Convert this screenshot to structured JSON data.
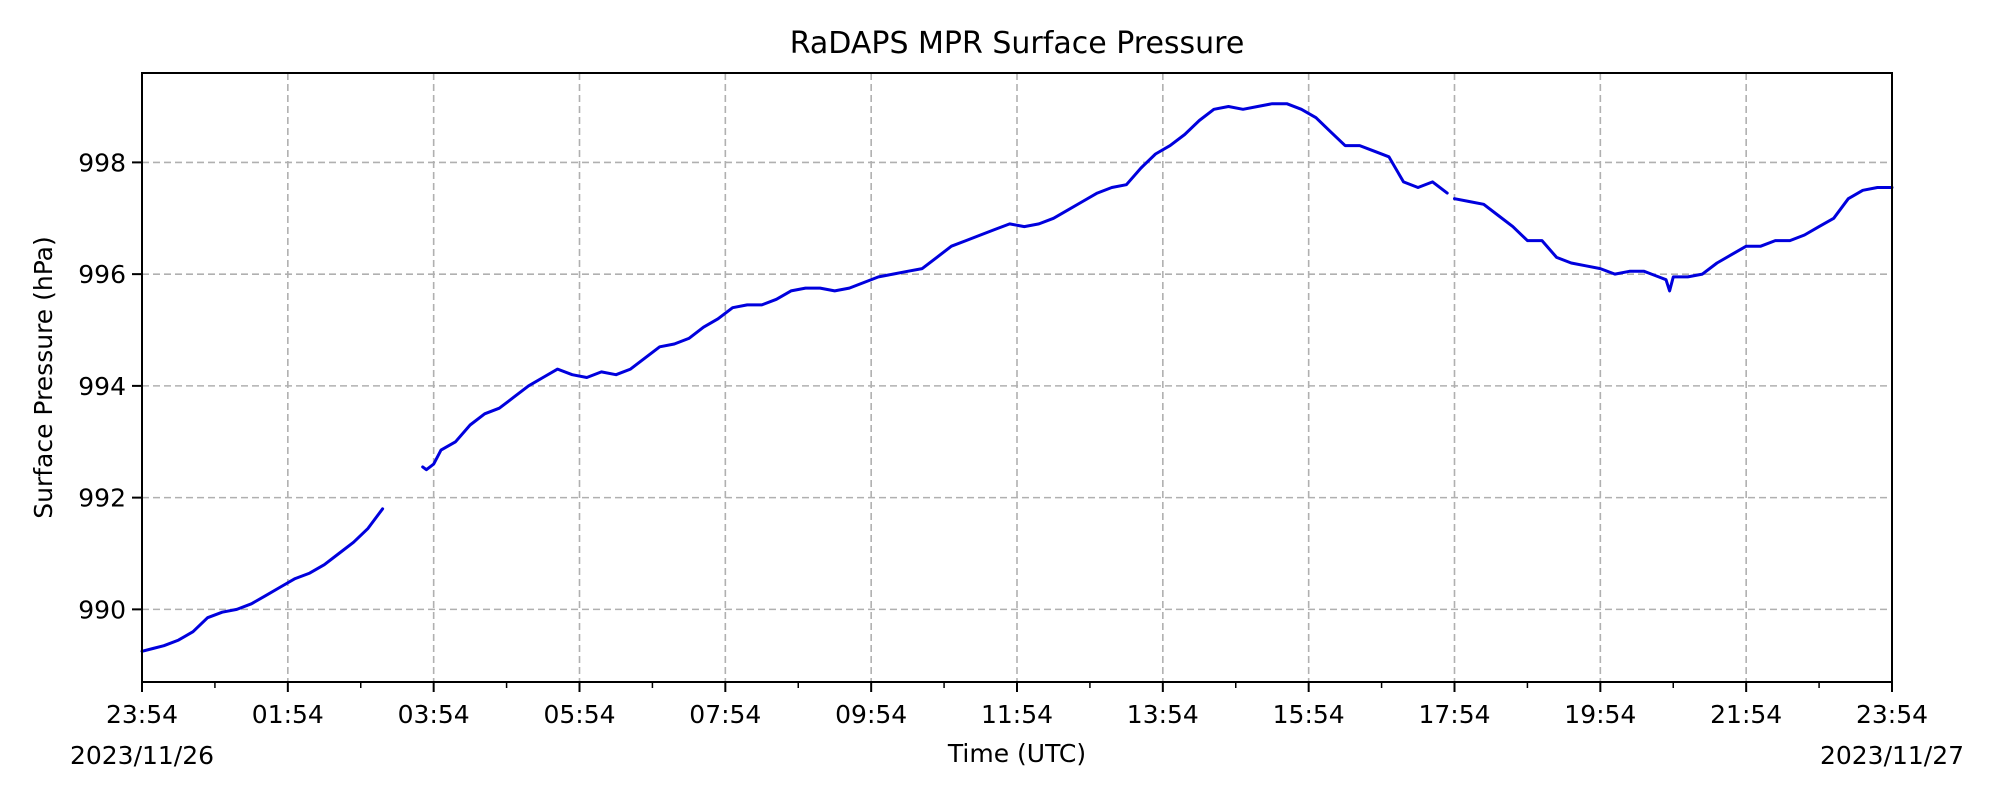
{
  "chart_data": {
    "type": "line",
    "title": "RaDAPS MPR Surface Pressure",
    "xlabel": "Time (UTC)",
    "ylabel": "Surface Pressure (hPa)",
    "x_unit": "hours after 2023/11/26 23:54 UTC",
    "xlim": [
      0,
      24
    ],
    "ylim": [
      988.7,
      999.6
    ],
    "grid": true,
    "legend": "none",
    "x_ticks": [
      {
        "x": 0,
        "label": "23:54"
      },
      {
        "x": 2,
        "label": "01:54"
      },
      {
        "x": 4,
        "label": "03:54"
      },
      {
        "x": 6,
        "label": "05:54"
      },
      {
        "x": 8,
        "label": "07:54"
      },
      {
        "x": 10,
        "label": "09:54"
      },
      {
        "x": 12,
        "label": "11:54"
      },
      {
        "x": 14,
        "label": "13:54"
      },
      {
        "x": 16,
        "label": "15:54"
      },
      {
        "x": 18,
        "label": "17:54"
      },
      {
        "x": 20,
        "label": "19:54"
      },
      {
        "x": 22,
        "label": "21:54"
      },
      {
        "x": 24,
        "label": "23:54"
      }
    ],
    "x_minor_ticks": [
      1,
      3,
      5,
      7,
      9,
      11,
      13,
      15,
      17,
      19,
      21,
      23
    ],
    "date_labels": [
      {
        "x": 0,
        "label": "2023/11/26"
      },
      {
        "x": 24,
        "label": "2023/11/27"
      }
    ],
    "y_ticks": [
      990,
      992,
      994,
      996,
      998
    ],
    "series": [
      {
        "color": "#0000dd",
        "segments": [
          [
            [
              0,
              989.25
            ],
            [
              0.15,
              989.3
            ],
            [
              0.3,
              989.35
            ],
            [
              0.5,
              989.45
            ],
            [
              0.7,
              989.6
            ],
            [
              0.9,
              989.85
            ],
            [
              1.1,
              989.95
            ],
            [
              1.3,
              990.0
            ],
            [
              1.5,
              990.1
            ],
            [
              1.7,
              990.25
            ],
            [
              1.9,
              990.4
            ],
            [
              2.1,
              990.55
            ],
            [
              2.3,
              990.65
            ],
            [
              2.5,
              990.8
            ],
            [
              2.7,
              991.0
            ],
            [
              2.9,
              991.2
            ],
            [
              3.1,
              991.45
            ],
            [
              3.3,
              991.8
            ]
          ],
          [
            [
              3.85,
              992.55
            ],
            [
              3.9,
              992.5
            ],
            [
              4.0,
              992.6
            ],
            [
              4.1,
              992.85
            ],
            [
              4.3,
              993.0
            ],
            [
              4.5,
              993.3
            ],
            [
              4.7,
              993.5
            ],
            [
              4.9,
              993.6
            ],
            [
              5.1,
              993.8
            ],
            [
              5.3,
              994.0
            ],
            [
              5.5,
              994.15
            ],
            [
              5.7,
              994.3
            ],
            [
              5.9,
              994.2
            ],
            [
              6.1,
              994.15
            ],
            [
              6.3,
              994.25
            ],
            [
              6.5,
              994.2
            ],
            [
              6.7,
              994.3
            ],
            [
              6.9,
              994.5
            ],
            [
              7.1,
              994.7
            ],
            [
              7.3,
              994.75
            ],
            [
              7.5,
              994.85
            ],
            [
              7.7,
              995.05
            ],
            [
              7.9,
              995.2
            ],
            [
              8.1,
              995.4
            ],
            [
              8.3,
              995.45
            ],
            [
              8.5,
              995.45
            ],
            [
              8.7,
              995.55
            ],
            [
              8.9,
              995.7
            ],
            [
              9.1,
              995.75
            ],
            [
              9.3,
              995.75
            ],
            [
              9.5,
              995.7
            ],
            [
              9.7,
              995.75
            ],
            [
              9.9,
              995.85
            ],
            [
              10.1,
              995.95
            ],
            [
              10.3,
              996.0
            ],
            [
              10.5,
              996.05
            ],
            [
              10.7,
              996.1
            ],
            [
              10.9,
              996.3
            ],
            [
              11.1,
              996.5
            ],
            [
              11.3,
              996.6
            ],
            [
              11.5,
              996.7
            ],
            [
              11.7,
              996.8
            ],
            [
              11.9,
              996.9
            ],
            [
              12.1,
              996.85
            ],
            [
              12.3,
              996.9
            ],
            [
              12.5,
              997.0
            ],
            [
              12.7,
              997.15
            ],
            [
              12.9,
              997.3
            ],
            [
              13.1,
              997.45
            ],
            [
              13.3,
              997.55
            ],
            [
              13.5,
              997.6
            ],
            [
              13.7,
              997.9
            ],
            [
              13.9,
              998.15
            ],
            [
              14.1,
              998.3
            ],
            [
              14.3,
              998.5
            ],
            [
              14.5,
              998.75
            ],
            [
              14.7,
              998.95
            ],
            [
              14.9,
              999.0
            ],
            [
              15.1,
              998.95
            ],
            [
              15.3,
              999.0
            ],
            [
              15.5,
              999.05
            ],
            [
              15.7,
              999.05
            ],
            [
              15.9,
              998.95
            ],
            [
              16.1,
              998.8
            ],
            [
              16.3,
              998.55
            ],
            [
              16.5,
              998.3
            ],
            [
              16.7,
              998.3
            ],
            [
              16.9,
              998.2
            ],
            [
              17.1,
              998.1
            ],
            [
              17.3,
              997.65
            ],
            [
              17.5,
              997.55
            ],
            [
              17.7,
              997.65
            ],
            [
              17.9,
              997.45
            ]
          ],
          [
            [
              18.0,
              997.35
            ],
            [
              18.2,
              997.3
            ],
            [
              18.4,
              997.25
            ],
            [
              18.6,
              997.05
            ],
            [
              18.8,
              996.85
            ],
            [
              19.0,
              996.6
            ],
            [
              19.2,
              996.6
            ],
            [
              19.4,
              996.3
            ],
            [
              19.6,
              996.2
            ],
            [
              19.8,
              996.15
            ],
            [
              20.0,
              996.1
            ],
            [
              20.2,
              996.0
            ],
            [
              20.4,
              996.05
            ],
            [
              20.6,
              996.05
            ],
            [
              20.8,
              995.95
            ],
            [
              20.9,
              995.9
            ],
            [
              20.95,
              995.7
            ],
            [
              21.0,
              995.95
            ],
            [
              21.2,
              995.95
            ],
            [
              21.4,
              996.0
            ],
            [
              21.6,
              996.2
            ],
            [
              21.8,
              996.35
            ],
            [
              22.0,
              996.5
            ],
            [
              22.2,
              996.5
            ],
            [
              22.4,
              996.6
            ],
            [
              22.6,
              996.6
            ],
            [
              22.8,
              996.7
            ],
            [
              23.0,
              996.85
            ],
            [
              23.2,
              997.0
            ],
            [
              23.4,
              997.35
            ],
            [
              23.6,
              997.5
            ],
            [
              23.8,
              997.55
            ],
            [
              24.0,
              997.55
            ]
          ]
        ]
      }
    ]
  }
}
